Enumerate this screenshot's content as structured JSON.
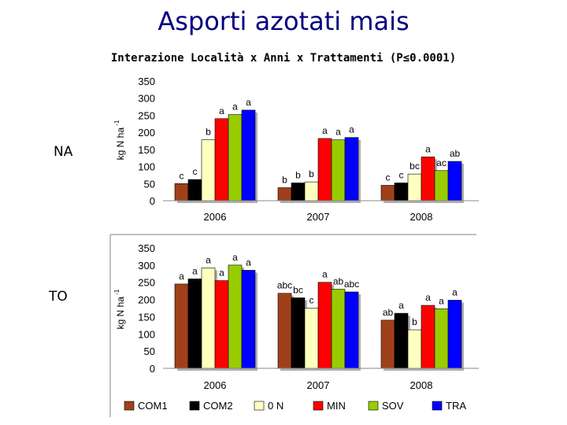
{
  "page": {
    "title": "Asporti azotati mais",
    "subtitle": "Interazione Località x Anni x Trattamenti (P≤0.0001)"
  },
  "chart_data": [
    {
      "type": "bar",
      "row_label": "NA",
      "ylabel": "kg N ha",
      "ylabel_sup": "-1",
      "ylim": [
        0,
        350
      ],
      "yticks": [
        0,
        50,
        100,
        150,
        200,
        250,
        300,
        350
      ],
      "categories": [
        "2006",
        "2007",
        "2008"
      ],
      "series": [
        {
          "name": "COM1",
          "color": "#A0401A",
          "values": [
            50,
            38,
            45
          ],
          "letters": [
            "c",
            "b",
            "c"
          ]
        },
        {
          "name": "COM2",
          "color": "#000000",
          "values": [
            62,
            52,
            52
          ],
          "letters": [
            "c",
            "b",
            "c"
          ]
        },
        {
          "name": "0 N",
          "color": "#FFFFC0",
          "values": [
            178,
            55,
            78
          ],
          "letters": [
            "b",
            "b",
            "bc"
          ]
        },
        {
          "name": "MIN",
          "color": "#FF0000",
          "values": [
            240,
            182,
            128
          ],
          "letters": [
            "a",
            "a",
            "a"
          ]
        },
        {
          "name": "SOV",
          "color": "#99CC00",
          "values": [
            252,
            178,
            88
          ],
          "letters": [
            "a",
            "a",
            "ac"
          ]
        },
        {
          "name": "TRA",
          "color": "#0000FF",
          "values": [
            265,
            185,
            115
          ],
          "letters": [
            "a",
            "a",
            "ab"
          ]
        }
      ]
    },
    {
      "type": "bar",
      "row_label": "TO",
      "ylabel": "kg N ha",
      "ylabel_sup": "-1",
      "ylim": [
        0,
        350
      ],
      "yticks": [
        0,
        50,
        100,
        150,
        200,
        250,
        300,
        350
      ],
      "categories": [
        "2006",
        "2007",
        "2008"
      ],
      "series": [
        {
          "name": "COM1",
          "color": "#A0401A",
          "values": [
            245,
            218,
            140
          ],
          "letters": [
            "a",
            "abc",
            "ab"
          ]
        },
        {
          "name": "COM2",
          "color": "#000000",
          "values": [
            260,
            205,
            160
          ],
          "letters": [
            "a",
            "bc",
            "a"
          ]
        },
        {
          "name": "0 N",
          "color": "#FFFFC0",
          "values": [
            292,
            175,
            112
          ],
          "letters": [
            "a",
            "c",
            "b"
          ]
        },
        {
          "name": "MIN",
          "color": "#FF0000",
          "values": [
            255,
            250,
            183
          ],
          "letters": [
            "a",
            "a",
            "a"
          ]
        },
        {
          "name": "SOV",
          "color": "#99CC00",
          "values": [
            300,
            230,
            173
          ],
          "letters": [
            "a",
            "ab",
            "a"
          ]
        },
        {
          "name": "TRA",
          "color": "#0000FF",
          "values": [
            285,
            222,
            198
          ],
          "letters": [
            "a",
            "abc",
            "a"
          ]
        }
      ]
    }
  ],
  "legend": [
    {
      "label": "COM1",
      "color": "#A0401A"
    },
    {
      "label": "COM2",
      "color": "#000000"
    },
    {
      "label": "0 N",
      "color": "#FFFFC0"
    },
    {
      "label": "MIN",
      "color": "#FF0000"
    },
    {
      "label": "SOV",
      "color": "#99CC00"
    },
    {
      "label": "TRA",
      "color": "#0000FF"
    }
  ]
}
